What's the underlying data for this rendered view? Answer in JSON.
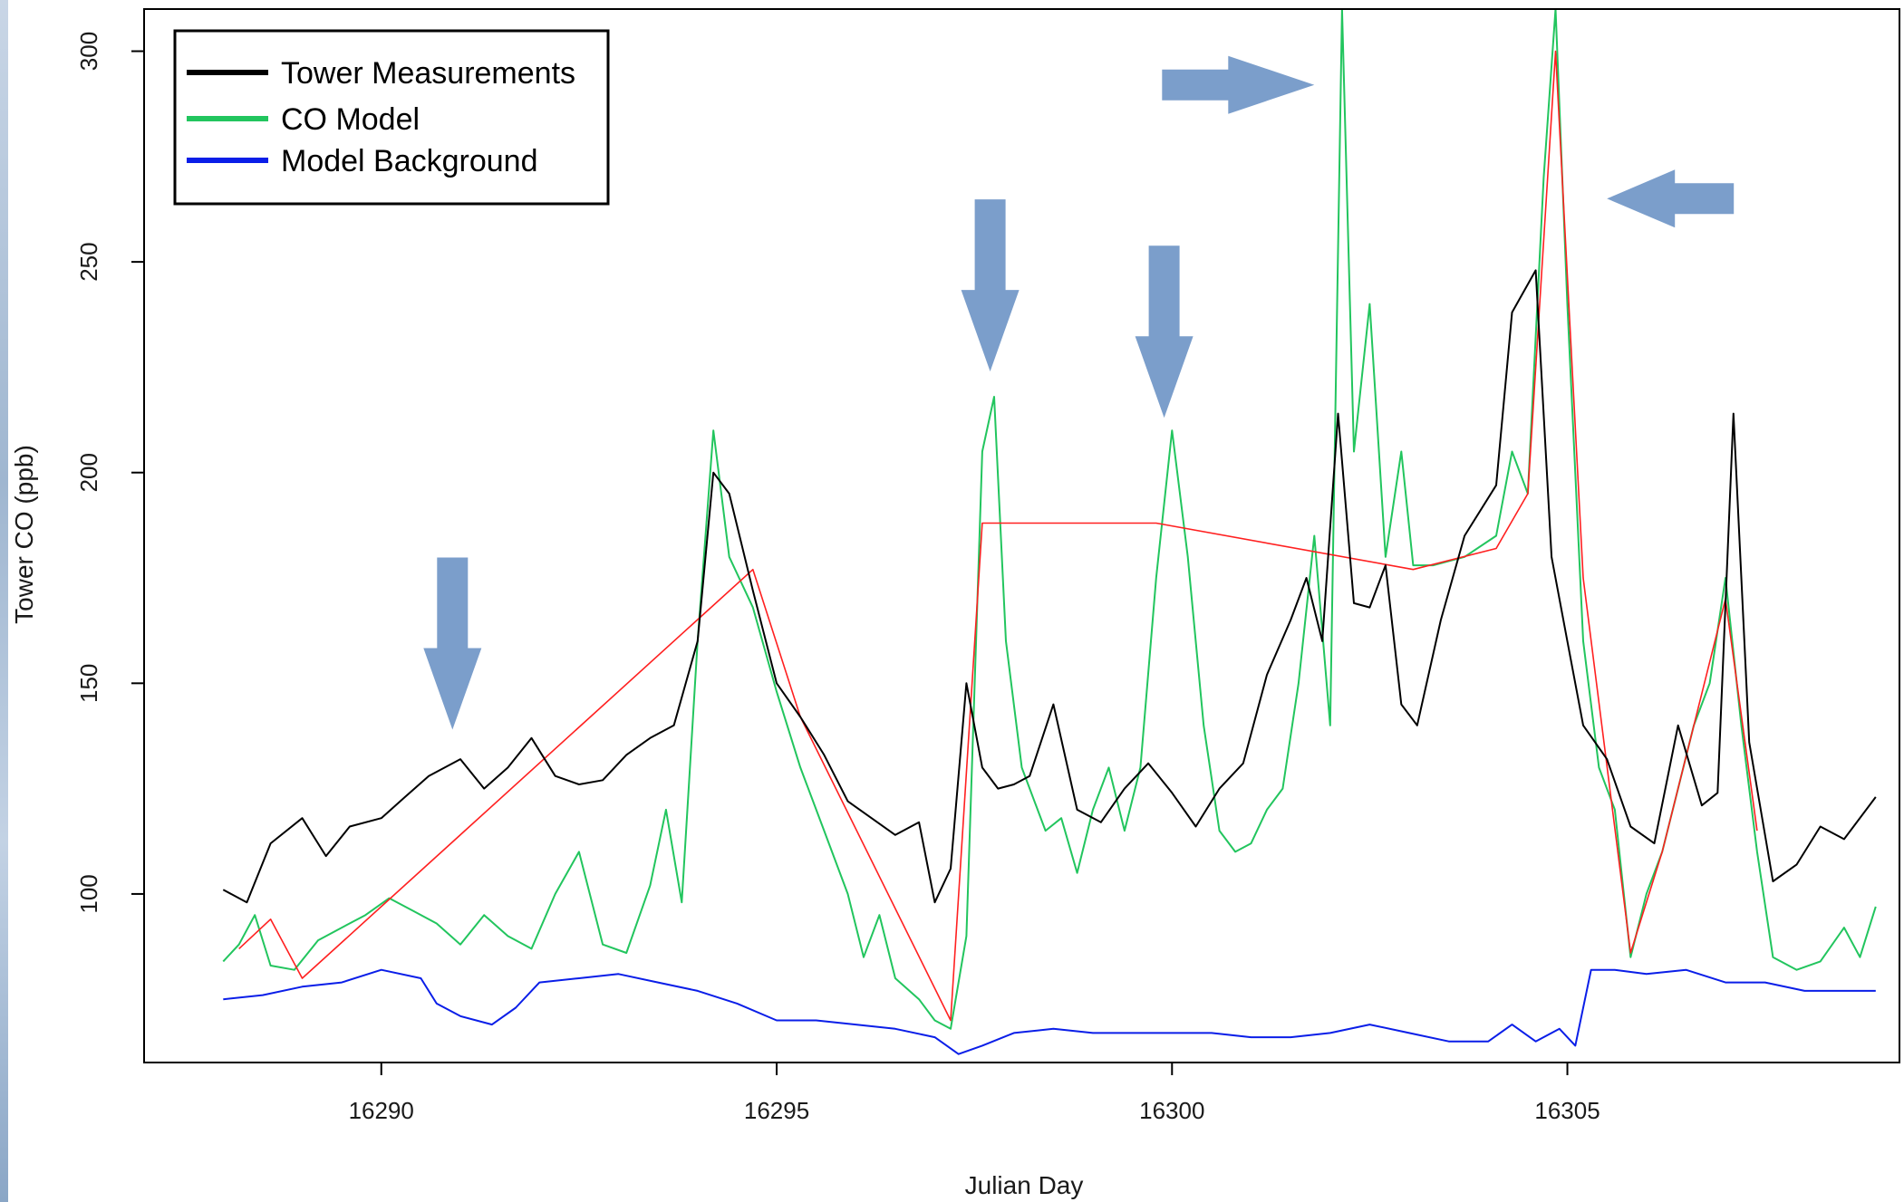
{
  "chart_data": {
    "type": "line",
    "title": "",
    "xlabel": "Julian Day",
    "ylabel": "Tower CO (ppb)",
    "xlim": [
      16287,
      16309.2
    ],
    "ylim": [
      60,
      310
    ],
    "x_ticks": [
      16290,
      16295,
      16300,
      16305
    ],
    "y_ticks": [
      100,
      150,
      200,
      250,
      300
    ],
    "x_tick_labels": [
      "16290",
      "16295",
      "16300",
      "16305"
    ],
    "y_tick_labels": [
      "100",
      "150",
      "200",
      "250",
      "300"
    ],
    "grid": false,
    "legend_position": "top-left",
    "legend": [
      {
        "label": "Tower Measurements",
        "color": "#000000"
      },
      {
        "label": "CO Model",
        "color": "#22c55e"
      },
      {
        "label": "Model Background",
        "color": "#0a1ee8"
      }
    ],
    "series": [
      {
        "name": "Tower Measurements",
        "color": "#000000",
        "x": [
          16288.0,
          16288.3,
          16288.6,
          16289.0,
          16289.3,
          16289.6,
          16290.0,
          16290.3,
          16290.6,
          16291.0,
          16291.3,
          16291.6,
          16291.9,
          16292.2,
          16292.5,
          16292.8,
          16293.1,
          16293.4,
          16293.7,
          16294.0,
          16294.2,
          16294.4,
          16294.7,
          16295.0,
          16295.3,
          16295.6,
          16295.9,
          16296.2,
          16296.5,
          16296.8,
          16297.0,
          16297.2,
          16297.4,
          16297.6,
          16297.8,
          16298.0,
          16298.2,
          16298.5,
          16298.8,
          16299.1,
          16299.4,
          16299.7,
          16300.0,
          16300.3,
          16300.6,
          16300.9,
          16301.2,
          16301.5,
          16301.7,
          16301.9,
          16302.1,
          16302.3,
          16302.5,
          16302.7,
          16302.9,
          16303.1,
          16303.4,
          16303.7,
          16304.1,
          16304.3,
          16304.6,
          16304.8,
          16305.0,
          16305.2,
          16305.5,
          16305.8,
          16306.1,
          16306.4,
          16306.7,
          16306.9,
          16307.1,
          16307.3,
          16307.6,
          16307.9,
          16308.2,
          16308.5,
          16308.9
        ],
        "y": [
          101,
          98,
          112,
          118,
          109,
          116,
          118,
          123,
          128,
          132,
          125,
          130,
          137,
          128,
          126,
          127,
          133,
          137,
          140,
          160,
          200,
          195,
          172,
          150,
          142,
          133,
          122,
          118,
          114,
          117,
          98,
          106,
          150,
          130,
          125,
          126,
          128,
          145,
          120,
          117,
          125,
          131,
          124,
          116,
          125,
          131,
          152,
          165,
          175,
          160,
          214,
          169,
          168,
          178,
          145,
          140,
          165,
          185,
          197,
          238,
          248,
          180,
          160,
          140,
          132,
          116,
          112,
          140,
          121,
          124,
          214,
          136,
          103,
          107,
          116,
          113,
          123
        ]
      },
      {
        "name": "CO Model",
        "color": "#22c55e",
        "x": [
          16288.0,
          16288.2,
          16288.4,
          16288.6,
          16288.9,
          16289.2,
          16289.5,
          16289.8,
          16290.1,
          16290.4,
          16290.7,
          16291.0,
          16291.3,
          16291.6,
          16291.9,
          16292.2,
          16292.5,
          16292.8,
          16293.1,
          16293.4,
          16293.6,
          16293.8,
          16294.0,
          16294.2,
          16294.4,
          16294.7,
          16295.0,
          16295.3,
          16295.6,
          16295.9,
          16296.1,
          16296.3,
          16296.5,
          16296.8,
          16297.0,
          16297.2,
          16297.4,
          16297.6,
          16297.75,
          16297.9,
          16298.1,
          16298.4,
          16298.6,
          16298.8,
          16299.0,
          16299.2,
          16299.4,
          16299.6,
          16299.8,
          16300.0,
          16300.2,
          16300.4,
          16300.6,
          16300.8,
          16301.0,
          16301.2,
          16301.4,
          16301.6,
          16301.8,
          16302.0,
          16302.15,
          16302.3,
          16302.5,
          16302.7,
          16302.9,
          16303.05,
          16303.3,
          16303.7,
          16304.1,
          16304.3,
          16304.5,
          16304.7,
          16304.85,
          16305.0,
          16305.2,
          16305.4,
          16305.6,
          16305.8,
          16306.0,
          16306.2,
          16306.4,
          16306.6,
          16306.8,
          16307.0,
          16307.2,
          16307.4,
          16307.6,
          16307.9,
          16308.2,
          16308.5,
          16308.7,
          16308.9
        ],
        "y": [
          84,
          88,
          95,
          83,
          82,
          89,
          92,
          95,
          99,
          96,
          93,
          88,
          95,
          90,
          87,
          100,
          110,
          88,
          86,
          102,
          120,
          98,
          160,
          210,
          180,
          168,
          148,
          130,
          115,
          100,
          85,
          95,
          80,
          75,
          70,
          68,
          90,
          205,
          218,
          160,
          130,
          115,
          118,
          105,
          120,
          130,
          115,
          130,
          175,
          210,
          180,
          140,
          115,
          110,
          112,
          120,
          125,
          150,
          185,
          140,
          310,
          205,
          240,
          180,
          205,
          178,
          178,
          180,
          185,
          205,
          195,
          270,
          310,
          240,
          160,
          130,
          120,
          85,
          100,
          110,
          125,
          140,
          150,
          175,
          140,
          110,
          85,
          82,
          84,
          92,
          85,
          97
        ]
      },
      {
        "name": "Model Background",
        "color": "#0a1ee8",
        "x": [
          16288.0,
          16288.5,
          16289.0,
          16289.5,
          16290.0,
          16290.5,
          16290.7,
          16291.0,
          16291.4,
          16291.7,
          16292.0,
          16292.5,
          16293.0,
          16293.5,
          16294.0,
          16294.5,
          16295.0,
          16295.5,
          16296.0,
          16296.5,
          16297.0,
          16297.3,
          16297.6,
          16298.0,
          16298.5,
          16299.0,
          16299.5,
          16300.0,
          16300.5,
          16301.0,
          16301.5,
          16302.0,
          16302.5,
          16303.0,
          16303.5,
          16304.0,
          16304.3,
          16304.6,
          16304.9,
          16305.1,
          16305.3,
          16305.6,
          16306.0,
          16306.5,
          16307.0,
          16307.5,
          16308.0,
          16308.5,
          16308.9
        ],
        "y": [
          75,
          76,
          78,
          79,
          82,
          80,
          74,
          71,
          69,
          73,
          79,
          80,
          81,
          79,
          77,
          74,
          70,
          70,
          69,
          68,
          66,
          62,
          64,
          67,
          68,
          67,
          67,
          67,
          67,
          66,
          66,
          67,
          69,
          67,
          65,
          65,
          69,
          65,
          68,
          64,
          82,
          82,
          81,
          82,
          79,
          79,
          77,
          77,
          77
        ]
      },
      {
        "name": "",
        "color": "#ff2020",
        "x": [
          16288.2,
          16288.6,
          16289.0,
          16294.7,
          16295.3,
          16297.2,
          16297.6,
          16299.8,
          16303.05,
          16304.1,
          16304.5,
          16304.85,
          16305.2,
          16305.8,
          16306.2,
          16306.6,
          16307.0,
          16307.4
        ],
        "y": [
          87,
          94,
          80,
          177,
          142,
          70,
          188,
          188,
          177,
          182,
          195,
          300,
          175,
          86,
          110,
          140,
          170,
          115
        ]
      }
    ],
    "annotations": [
      {
        "type": "arrow",
        "direction": "down",
        "at_x": 16290.9,
        "at_y": 139
      },
      {
        "type": "arrow",
        "direction": "down",
        "at_x": 16297.7,
        "at_y": 224
      },
      {
        "type": "arrow",
        "direction": "down",
        "at_x": 16299.9,
        "at_y": 213
      },
      {
        "type": "arrow",
        "direction": "right",
        "at_x": 16301.8,
        "at_y": 292
      },
      {
        "type": "arrow",
        "direction": "left",
        "at_x": 16305.5,
        "at_y": 265
      }
    ]
  }
}
